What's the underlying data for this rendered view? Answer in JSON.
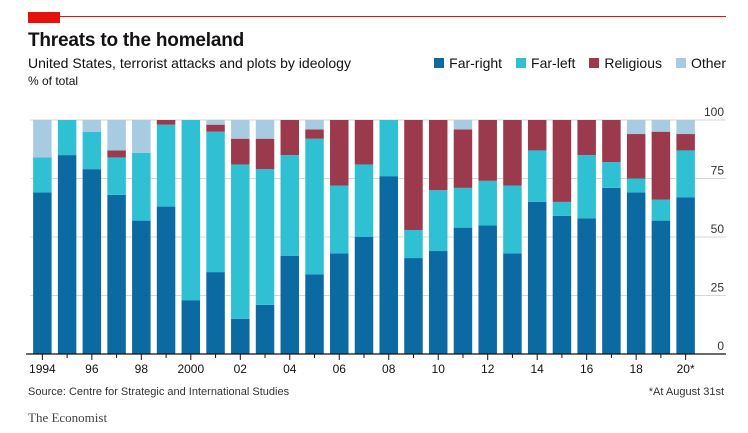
{
  "chart_data": {
    "type": "bar",
    "stacked": true,
    "title": "Threats to the homeland",
    "subtitle": "United States, terrorist attacks and plots by ideology",
    "ylabel": "% of total",
    "ylim": [
      0,
      100
    ],
    "yticks": [
      0,
      25,
      50,
      75,
      100
    ],
    "categories": [
      "1994",
      "1995",
      "1996",
      "1997",
      "1998",
      "1999",
      "2000",
      "2001",
      "2002",
      "2003",
      "2004",
      "2005",
      "2006",
      "2007",
      "2008",
      "2009",
      "2010",
      "2011",
      "2012",
      "2013",
      "2014",
      "2015",
      "2016",
      "2017",
      "2018",
      "2019",
      "2020*"
    ],
    "xtick_labels": [
      "1994",
      "",
      "96",
      "",
      "98",
      "",
      "2000",
      "",
      "02",
      "",
      "04",
      "",
      "06",
      "",
      "08",
      "",
      "10",
      "",
      "12",
      "",
      "14",
      "",
      "16",
      "",
      "18",
      "",
      "20*"
    ],
    "series": [
      {
        "name": "Far-right",
        "color": "#0b6aa2",
        "values": [
          69,
          85,
          79,
          68,
          57,
          63,
          23,
          35,
          15,
          21,
          42,
          34,
          43,
          50,
          76,
          41,
          44,
          54,
          55,
          43,
          65,
          59,
          58,
          71,
          69,
          57,
          67
        ]
      },
      {
        "name": "Far-left",
        "color": "#2fc1d3",
        "values": [
          15,
          15,
          16,
          16,
          29,
          35,
          77,
          60,
          66,
          58,
          43,
          58,
          29,
          31,
          24,
          12,
          26,
          17,
          19,
          29,
          22,
          6,
          27,
          11,
          6,
          9,
          20
        ]
      },
      {
        "name": "Religious",
        "color": "#9b3a4d",
        "values": [
          0,
          0,
          0,
          3,
          0,
          2,
          0,
          3,
          11,
          13,
          15,
          4,
          28,
          19,
          0,
          47,
          30,
          25,
          26,
          28,
          13,
          35,
          15,
          18,
          19,
          29,
          7
        ]
      },
      {
        "name": "Other",
        "color": "#a7cbe0",
        "values": [
          16,
          0,
          5,
          13,
          14,
          0,
          0,
          2,
          8,
          8,
          0,
          4,
          0,
          0,
          0,
          0,
          0,
          4,
          0,
          0,
          0,
          0,
          0,
          0,
          6,
          5,
          6
        ]
      }
    ]
  },
  "source": "Source: Centre for Strategic and International Studies",
  "footnote": "*At August 31st",
  "brand": "The Economist"
}
